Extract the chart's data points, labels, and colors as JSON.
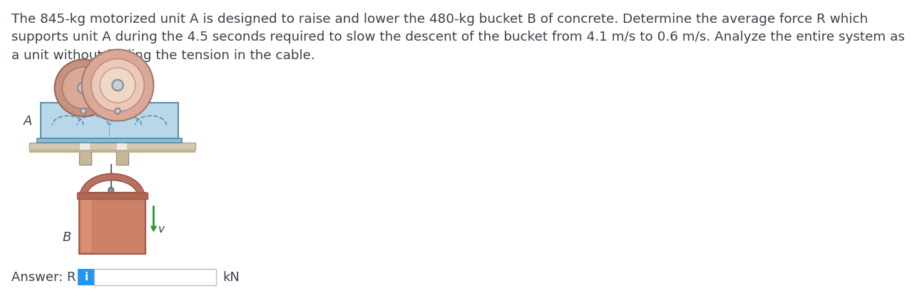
{
  "title_text": "The 845-kg motorized unit A is designed to raise and lower the 480-kg bucket B of concrete. Determine the average force R which\nsupports unit A during the 4.5 seconds required to slow the descent of the bucket from 4.1 m/s to 0.6 m/s. Analyze the entire system as\na unit without finding the tension in the cable.",
  "answer_label": "Answer: R = ",
  "answer_unit": "kN",
  "label_A": "A",
  "label_B": "B",
  "label_v": "v",
  "bg_color": "#ffffff",
  "text_color": "#3a3f4a",
  "blue_box_color": "#2196F3",
  "input_box_color": "#ffffff",
  "input_border_color": "#bbbbbb",
  "cable_color": "#666666",
  "machine_body_color": "#b8d8ea",
  "machine_body_color2": "#cce4f0",
  "machine_border_color": "#5a8fa8",
  "machine_top_color": "#8bbdd4",
  "floor_color": "#d4c8b0",
  "floor_shadow_color": "#c0b090",
  "support_color": "#c8b898",
  "pulley_left_outer": "#c89080",
  "pulley_left_mid": "#dba898",
  "pulley_left_inner_outer": "#e8c0b0",
  "pulley_left_hub": "#d0d8e0",
  "pulley_right_outer": "#dba898",
  "pulley_right_mid": "#ecc8b8",
  "pulley_right_inner": "#f0d8c8",
  "pulley_right_hub": "#d0d8e0",
  "bucket_body": "#cd8068",
  "bucket_body_light": "#e09878",
  "bucket_handle": "#b87060",
  "bucket_rim": "#b06850",
  "bucket_shadow": "#a05848",
  "arrow_color": "#2a9a2a",
  "font_size_title": 13.2,
  "font_size_answer": 13,
  "font_size_label": 12
}
